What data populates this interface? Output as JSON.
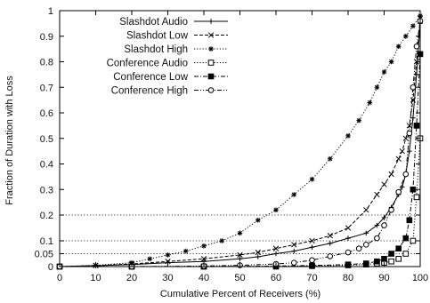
{
  "chart_data": {
    "type": "line",
    "title": "",
    "xlabel": "Cumulative Percent of Receivers (%)",
    "ylabel": "Fraction of Duration with Loss",
    "xlim": [
      0,
      100
    ],
    "ylim": [
      0,
      1
    ],
    "y_scale": "piecewise: 0-0.2 expanded, 0.2-1 linear",
    "x_ticks": [
      "0",
      "10",
      "20",
      "30",
      "40",
      "50",
      "60",
      "70",
      "80",
      "90",
      "100"
    ],
    "y_ticks": [
      "0",
      "0.05",
      "0.1",
      "0.2",
      "0.3",
      "0.4",
      "0.5",
      "0.6",
      "0.7",
      "0.8",
      "0.9",
      "1"
    ],
    "reference_lines_y": [
      0.05,
      0.1,
      0.2
    ],
    "legend_position": "top-left",
    "series": [
      {
        "name": "Slashdot Audio",
        "marker": "plus",
        "line": "solid",
        "x": [
          0,
          10,
          20,
          30,
          40,
          50,
          55,
          60,
          65,
          70,
          75,
          80,
          85,
          88,
          90,
          92,
          94,
          95,
          96,
          97,
          98,
          99,
          100
        ],
        "y": [
          0,
          0.003,
          0.008,
          0.015,
          0.02,
          0.03,
          0.038,
          0.05,
          0.06,
          0.075,
          0.09,
          0.11,
          0.13,
          0.16,
          0.19,
          0.23,
          0.28,
          0.31,
          0.36,
          0.45,
          0.58,
          0.75,
          0.95
        ]
      },
      {
        "name": "Slashdot Low",
        "marker": "x",
        "line": "dashed",
        "x": [
          0,
          10,
          20,
          30,
          40,
          50,
          55,
          60,
          65,
          70,
          75,
          80,
          85,
          88,
          90,
          92,
          94,
          95,
          96,
          97,
          98,
          99,
          100
        ],
        "y": [
          0,
          0.004,
          0.01,
          0.02,
          0.03,
          0.045,
          0.055,
          0.07,
          0.085,
          0.1,
          0.12,
          0.15,
          0.22,
          0.28,
          0.32,
          0.36,
          0.42,
          0.45,
          0.5,
          0.55,
          0.65,
          0.8,
          0.97
        ]
      },
      {
        "name": "Slashdot High",
        "marker": "star",
        "line": "dotted",
        "x": [
          0,
          10,
          20,
          25,
          30,
          35,
          40,
          45,
          50,
          55,
          60,
          65,
          70,
          75,
          80,
          83,
          86,
          88,
          90,
          92,
          94,
          96,
          98,
          100
        ],
        "y": [
          0,
          0.005,
          0.015,
          0.03,
          0.045,
          0.06,
          0.08,
          0.1,
          0.13,
          0.18,
          0.22,
          0.28,
          0.34,
          0.42,
          0.51,
          0.57,
          0.64,
          0.7,
          0.76,
          0.8,
          0.86,
          0.9,
          0.94,
          0.98
        ]
      },
      {
        "name": "Conference Audio",
        "marker": "open-square",
        "line": "dotted",
        "x": [
          0,
          20,
          40,
          60,
          70,
          80,
          85,
          88,
          90,
          92,
          94,
          96,
          98,
          99,
          100
        ],
        "y": [
          0,
          0,
          0,
          0,
          0.002,
          0.005,
          0.008,
          0.012,
          0.015,
          0.02,
          0.03,
          0.05,
          0.1,
          0.27,
          0.5
        ]
      },
      {
        "name": "Conference Low",
        "marker": "filled-square",
        "line": "dash-dot",
        "x": [
          0,
          20,
          40,
          60,
          70,
          80,
          85,
          88,
          90,
          92,
          94,
          96,
          97,
          98,
          99,
          100
        ],
        "y": [
          0,
          0,
          0,
          0.002,
          0.004,
          0.008,
          0.012,
          0.02,
          0.03,
          0.05,
          0.07,
          0.11,
          0.18,
          0.3,
          0.55,
          0.83
        ]
      },
      {
        "name": "Conference High",
        "marker": "open-circle",
        "line": "dash-dot-dot",
        "x": [
          0,
          20,
          40,
          50,
          60,
          65,
          70,
          75,
          80,
          83,
          85,
          88,
          90,
          92,
          94,
          96,
          97,
          98,
          99,
          100
        ],
        "y": [
          0,
          0,
          0.002,
          0.005,
          0.01,
          0.015,
          0.025,
          0.04,
          0.055,
          0.07,
          0.085,
          0.11,
          0.16,
          0.22,
          0.29,
          0.36,
          0.52,
          0.7,
          0.86,
          0.96
        ]
      }
    ]
  }
}
